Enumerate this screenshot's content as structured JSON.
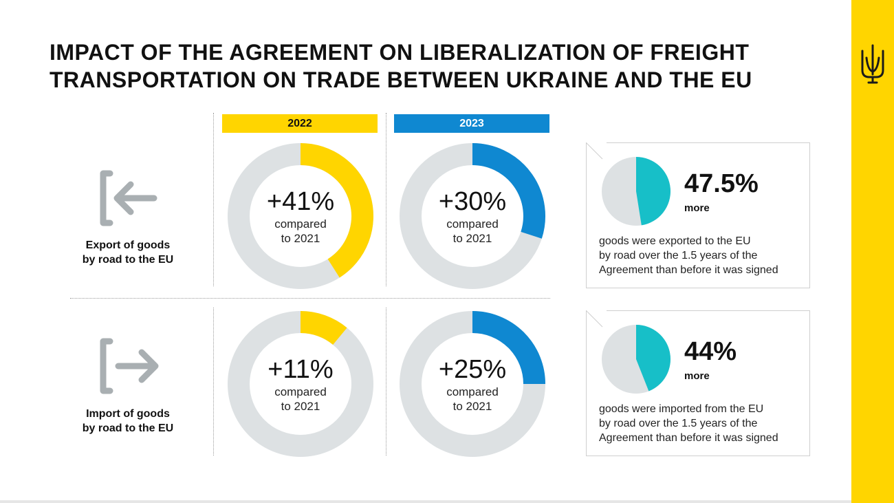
{
  "title_lines": [
    "IMPACT OF THE AGREEMENT ON LIBERALIZATION OF FREIGHT",
    "TRANSPORTATION ON TRADE BETWEEN UKRAINE AND THE EU"
  ],
  "colors": {
    "yellow": "#FFD500",
    "blue": "#0F88D1",
    "gray": "#DDE1E3",
    "teal": "#17BFC8"
  },
  "icons": {
    "export": "export-arrow-left-icon",
    "import": "import-arrow-right-icon",
    "emblem": "trident-emblem-icon"
  },
  "rows": [
    {
      "label_lines": [
        "Export of goods",
        "by road to the EU"
      ]
    },
    {
      "label_lines": [
        "Import of goods",
        "by road to the EU"
      ]
    }
  ],
  "chart_data": [
    {
      "type": "pie",
      "variant": "donut",
      "year": "2022",
      "row": "export",
      "value": 41,
      "label": "+41%",
      "sub_lines": [
        "compared",
        "to 2021"
      ],
      "color": "#FFD500"
    },
    {
      "type": "pie",
      "variant": "donut",
      "year": "2023",
      "row": "export",
      "value": 30,
      "label": "+30%",
      "sub_lines": [
        "compared",
        "to 2021"
      ],
      "color": "#0F88D1"
    },
    {
      "type": "pie",
      "variant": "donut",
      "year": "2022",
      "row": "import",
      "value": 11,
      "label": "+11%",
      "sub_lines": [
        "compared",
        "to 2021"
      ],
      "color": "#FFD500"
    },
    {
      "type": "pie",
      "variant": "donut",
      "year": "2023",
      "row": "import",
      "value": 25,
      "label": "+25%",
      "sub_lines": [
        "compared",
        "to 2021"
      ],
      "color": "#0F88D1"
    },
    {
      "type": "pie",
      "row": "export",
      "value": 47.5,
      "label": "47.5%",
      "more": "more",
      "desc_lines": [
        "goods were exported to the EU",
        "by road over the 1.5 years of the",
        "Agreement than before it was signed"
      ],
      "color": "#17BFC8"
    },
    {
      "type": "pie",
      "row": "import",
      "value": 44,
      "label": "44%",
      "more": "more",
      "desc_lines": [
        "goods were imported from the EU",
        "by road over the 1.5 years of the",
        "Agreement than before it was signed"
      ],
      "color": "#17BFC8"
    }
  ],
  "year_labels": [
    "2022",
    "2023"
  ]
}
